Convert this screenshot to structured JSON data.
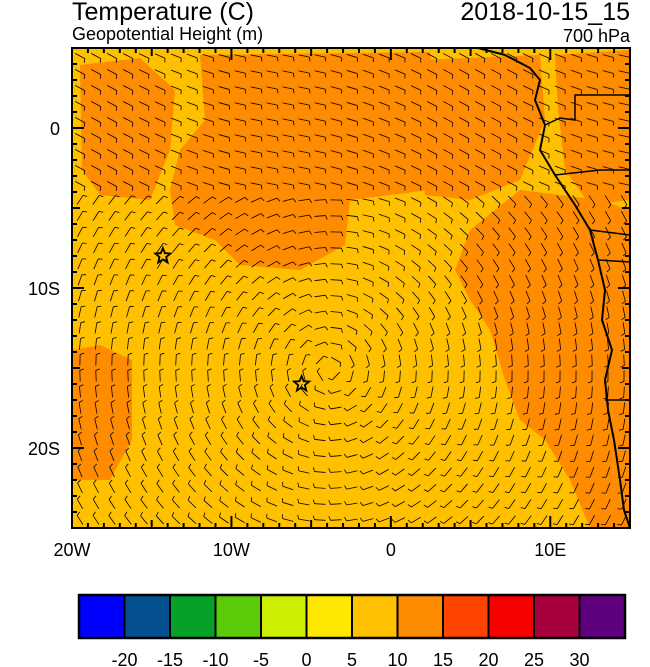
{
  "header": {
    "title": "Temperature (C)",
    "subtitle": "Geopotential Height (m)",
    "datetime": "2018-10-15_15",
    "level": "700 hPa"
  },
  "map": {
    "lon_range": [
      -20,
      15
    ],
    "lat_range": [
      -25,
      5
    ],
    "x_ticks": [
      {
        "value": -20,
        "label": "20W"
      },
      {
        "value": -10,
        "label": "10W"
      },
      {
        "value": 0,
        "label": "0"
      },
      {
        "value": 10,
        "label": "10E"
      }
    ],
    "y_ticks": [
      {
        "value": 0,
        "label": "0"
      },
      {
        "value": -10,
        "label": "10S"
      },
      {
        "value": -20,
        "label": "20S"
      }
    ],
    "background_color": "#ffc000",
    "warm_color": "#ff8c00",
    "markers": [
      {
        "type": "star-icon",
        "lon": -14.3,
        "lat": -8.0
      },
      {
        "type": "star-icon",
        "lon": -5.6,
        "lat": -16.0
      }
    ]
  },
  "colorbar": {
    "colors": [
      "#0000ff",
      "#04508f",
      "#07a029",
      "#5ccc0a",
      "#ccee00",
      "#ffe800",
      "#ffc000",
      "#ff8c00",
      "#ff4400",
      "#f70000",
      "#a8003f",
      "#5f007f"
    ],
    "labels": [
      "-20",
      "-15",
      "-10",
      "-5",
      "0",
      "5",
      "10",
      "15",
      "20",
      "25",
      "30"
    ]
  }
}
